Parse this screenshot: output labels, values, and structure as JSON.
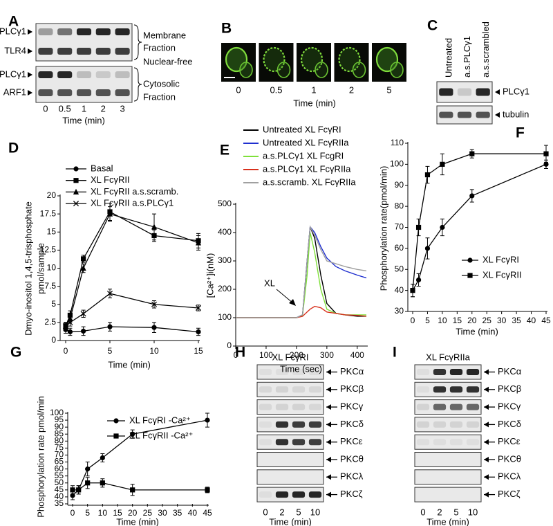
{
  "panel_a": {
    "label": "A",
    "upper_rows": [
      "PLCγ1",
      "TLR4"
    ],
    "upper_note": [
      "Membrane",
      "Fraction",
      "Nuclear-free"
    ],
    "lower_rows": [
      "PLCγ1",
      "ARF1"
    ],
    "lower_note": [
      "Cytosolic",
      "Fraction"
    ],
    "lanes": [
      "0",
      "0.5",
      "1",
      "2",
      "3"
    ],
    "xlabel": "Time (min)"
  },
  "panel_b": {
    "label": "B",
    "lanes": [
      "0",
      "0.5",
      "1",
      "2",
      "5"
    ],
    "xlabel": "Time (min)"
  },
  "panel_c": {
    "label": "C",
    "columns": [
      "Untreated",
      "a.s.PLCγ1",
      "a.s.scrambled"
    ],
    "rows": [
      "PLCγ1",
      "tubulin"
    ]
  },
  "panel_h": {
    "label": "H",
    "title": "XL FcγRI",
    "rows": [
      "PKCα",
      "PKCβ",
      "PKCγ",
      "PKCδ",
      "PKCε",
      "PKCθ",
      "PKCλ",
      "PKCζ"
    ],
    "lanes": [
      "0",
      "2",
      "5",
      "10"
    ],
    "xlabel": "Time (min)"
  },
  "panel_i": {
    "label": "I",
    "title": "XL FcγRIIa",
    "rows": [
      "PKCα",
      "PKCβ",
      "PKCγ",
      "PKCδ",
      "PKCε",
      "PKCθ",
      "PKCλ",
      "PKCζ"
    ],
    "lanes": [
      "0",
      "2",
      "5",
      "10"
    ],
    "xlabel": "Time (min)"
  },
  "chart_data": [
    {
      "panel": "D",
      "type": "line",
      "xlabel": "Time (min)",
      "ylabel": [
        "Dmyo-inositol 1,4,5-trisphosphate",
        "pmol/sample"
      ],
      "xlim": [
        0,
        15
      ],
      "xticks": [
        0,
        5,
        10,
        15
      ],
      "ylim": [
        0,
        20
      ],
      "yticks": [
        0,
        2.5,
        5,
        7.5,
        10,
        12.5,
        15,
        17.5,
        20
      ],
      "x": [
        0,
        0.5,
        2,
        5,
        10,
        15
      ],
      "series": [
        {
          "name": "Basal",
          "color": "#000000",
          "marker": "circle",
          "values": [
            1.5,
            1.2,
            1.3,
            1.9,
            1.8,
            1.2
          ],
          "errors": [
            0.5,
            0.5,
            0.6,
            0.6,
            0.7,
            0.5
          ]
        },
        {
          "name": "XL FcγRII",
          "color": "#000000",
          "marker": "square",
          "values": [
            2,
            3.5,
            11.3,
            17.8,
            14.5,
            13.8
          ],
          "errors": [
            0.5,
            0.6,
            0.5,
            1.2,
            0.8,
            1.0
          ]
        },
        {
          "name": "XL FcγRII a.s.scramb.",
          "color": "#000000",
          "marker": "triangle",
          "values": [
            2,
            3,
            10,
            17.5,
            15.7,
            13.5
          ],
          "errors": [
            0.5,
            0.5,
            0.6,
            1.0,
            1.8,
            1.0
          ]
        },
        {
          "name": "XL FcγRII a.s.PLCγ1",
          "color": "#000000",
          "marker": "x",
          "values": [
            2,
            2.5,
            3.7,
            6.5,
            5,
            4.5
          ],
          "errors": [
            0.4,
            0.5,
            0.5,
            0.6,
            0.5,
            0.4
          ]
        }
      ]
    },
    {
      "panel": "E",
      "type": "line",
      "xlabel": "Time (sec)",
      "ylabel": [
        "[Ca²⁺]i(nM)"
      ],
      "annotation": "XL",
      "xlim": [
        0,
        430
      ],
      "xticks": [
        0,
        100,
        200,
        300,
        400
      ],
      "ylim": [
        0,
        500
      ],
      "yticks": [
        0,
        100,
        200,
        300,
        400,
        500
      ],
      "x": [
        0,
        100,
        200,
        220,
        235,
        245,
        260,
        280,
        300,
        330,
        360,
        400,
        430
      ],
      "series": [
        {
          "name": "Untreated XL FcγRI",
          "color": "#000000",
          "values": [
            100,
            100,
            100,
            110,
            300,
            420,
            380,
            250,
            150,
            115,
            110,
            105,
            105
          ]
        },
        {
          "name": "Untreated XL FcγRIIa",
          "color": "#1f2fcf",
          "values": [
            100,
            100,
            100,
            110,
            300,
            420,
            400,
            350,
            310,
            280,
            265,
            250,
            240
          ]
        },
        {
          "name": "a.s.PLCγ1 XL FcgRI",
          "color": "#7fe03a",
          "values": [
            100,
            100,
            100,
            108,
            250,
            400,
            330,
            200,
            130,
            115,
            110,
            110,
            110
          ]
        },
        {
          "name": "a.s.PLCγ1 XL FcγRIIa",
          "color": "#d8301c",
          "values": [
            100,
            100,
            100,
            105,
            120,
            130,
            140,
            135,
            120,
            115,
            110,
            108,
            105
          ]
        },
        {
          "name": "a.s.scramb. XL FcγRIIa",
          "color": "#a0a0a0",
          "values": [
            100,
            100,
            100,
            110,
            300,
            420,
            390,
            340,
            300,
            290,
            280,
            270,
            265
          ]
        }
      ]
    },
    {
      "panel": "F",
      "type": "line",
      "xlabel": "Time (min)",
      "ylabel": [
        "Phosphorylation rate(pmol/min)"
      ],
      "xlim": [
        0,
        45
      ],
      "xticks": [
        0,
        5,
        10,
        15,
        20,
        25,
        30,
        35,
        40,
        45
      ],
      "ylim": [
        30,
        110
      ],
      "yticks": [
        30,
        40,
        50,
        60,
        70,
        80,
        90,
        100,
        110
      ],
      "x": [
        0,
        2,
        5,
        10,
        20,
        45
      ],
      "series": [
        {
          "name": "XL FcγRI",
          "color": "#000000",
          "marker": "circle",
          "values": [
            40,
            45,
            60,
            70,
            85,
            100
          ],
          "errors": [
            3,
            3,
            5,
            4,
            3,
            2
          ]
        },
        {
          "name": "XL FcγRII",
          "color": "#000000",
          "marker": "square",
          "values": [
            40,
            70,
            95,
            100,
            105,
            105
          ],
          "errors": [
            3,
            4,
            4,
            5,
            2,
            4
          ]
        }
      ]
    },
    {
      "panel": "G",
      "type": "line",
      "xlabel": "Time (min)",
      "ylabel": [
        "Phosphorylation rate pmol/min"
      ],
      "xlim": [
        0,
        45
      ],
      "xticks": [
        0,
        5,
        10,
        15,
        20,
        25,
        30,
        35,
        40,
        45
      ],
      "ylim": [
        35,
        100
      ],
      "yticks": [
        35,
        40,
        45,
        50,
        55,
        60,
        65,
        70,
        75,
        80,
        85,
        90,
        95,
        100
      ],
      "x": [
        0,
        2,
        5,
        10,
        20,
        45
      ],
      "series": [
        {
          "name": "XL FcγRI -Ca²⁺",
          "color": "#000000",
          "marker": "circle",
          "values": [
            41,
            45,
            60,
            68,
            85,
            95
          ],
          "errors": [
            3,
            3,
            5,
            3,
            3,
            5
          ]
        },
        {
          "name": "XL FcγRII -Ca²⁺",
          "color": "#000000",
          "marker": "square",
          "values": [
            45,
            45,
            50,
            50,
            45,
            45
          ],
          "errors": [
            3,
            3,
            4,
            3,
            4,
            2
          ]
        }
      ]
    }
  ]
}
